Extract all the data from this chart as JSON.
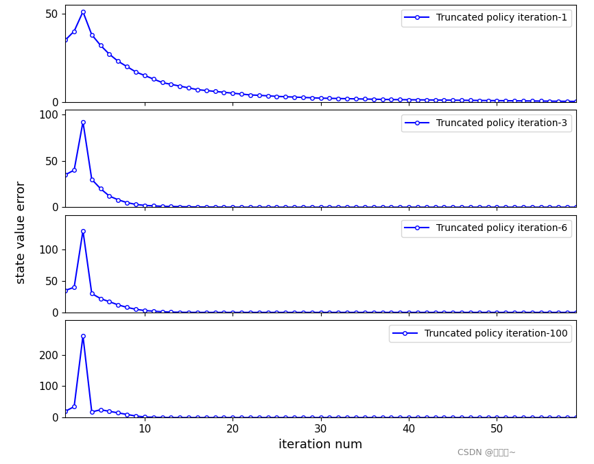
{
  "subplots": [
    {
      "label": "Truncated policy iteration-1",
      "ylim": [
        0,
        55
      ],
      "yticks": [
        0,
        50
      ],
      "n_points": 59,
      "curve_type": "slow_decay",
      "y_values": [
        35,
        40,
        51,
        38,
        32,
        27,
        23,
        20,
        17,
        15,
        13,
        11,
        10,
        9,
        8,
        7,
        6.5,
        6,
        5.5,
        5,
        4.5,
        4,
        3.8,
        3.5,
        3.2,
        3,
        2.8,
        2.6,
        2.4,
        2.2,
        2.1,
        2.0,
        1.9,
        1.8,
        1.7,
        1.6,
        1.5,
        1.4,
        1.35,
        1.3,
        1.25,
        1.2,
        1.15,
        1.1,
        1.05,
        1.0,
        0.95,
        0.9,
        0.85,
        0.8,
        0.75,
        0.7,
        0.65,
        0.6,
        0.55,
        0.5,
        0.45,
        0.4,
        0.35
      ]
    },
    {
      "label": "Truncated policy iteration-3",
      "ylim": [
        0,
        105
      ],
      "yticks": [
        0,
        50,
        100
      ],
      "n_points": 59,
      "curve_type": "fast_decay",
      "y_values": [
        35,
        40,
        92,
        30,
        20,
        12,
        8,
        5,
        3,
        2,
        1.5,
        1,
        0.8,
        0.6,
        0.4,
        0.3,
        0.2,
        0.15,
        0.1,
        0.05,
        0.02,
        0.01,
        0.0,
        0.0,
        0.0,
        0.0,
        0.0,
        0.0,
        0.0,
        0.0,
        0.0,
        0.0,
        0.0,
        0.0,
        0.0,
        0.0,
        0.0,
        0.0,
        0.0,
        0.0,
        0.0,
        0.0,
        0.0,
        0.0,
        0.0,
        0.0,
        0.0,
        0.0,
        0.0,
        0.0,
        0.0,
        0.0,
        0.0,
        0.0,
        0.0,
        0.0,
        0.0,
        0.0,
        0.0
      ]
    },
    {
      "label": "Truncated policy iteration-6",
      "ylim": [
        0,
        155
      ],
      "yticks": [
        0,
        50,
        100
      ],
      "n_points": 59,
      "curve_type": "fast_decay",
      "y_values": [
        35,
        40,
        130,
        30,
        22,
        17,
        12,
        8,
        5,
        3,
        2,
        1,
        0.5,
        0.2,
        0.05,
        0.01,
        0.0,
        0.0,
        0.0,
        0.0,
        0.0,
        0.0,
        0.0,
        0.0,
        0.0,
        0.0,
        0.0,
        0.0,
        0.0,
        0.0,
        0.0,
        0.0,
        0.0,
        0.0,
        0.0,
        0.0,
        0.0,
        0.0,
        0.0,
        0.0,
        0.0,
        0.0,
        0.0,
        0.0,
        0.0,
        0.0,
        0.0,
        0.0,
        0.0,
        0.0,
        0.0,
        0.0,
        0.0,
        0.0,
        0.0,
        0.0,
        0.0,
        0.0,
        0.0
      ]
    },
    {
      "label": "Truncated policy iteration-100",
      "ylim": [
        0,
        310
      ],
      "yticks": [
        0,
        100,
        200
      ],
      "n_points": 59,
      "curve_type": "fast_decay",
      "y_values": [
        20,
        35,
        260,
        18,
        25,
        20,
        15,
        10,
        5,
        2,
        1,
        0.5,
        0.1,
        0.02,
        0.0,
        0.0,
        0.0,
        0.0,
        0.0,
        0.0,
        0.0,
        0.0,
        0.0,
        0.0,
        0.0,
        0.0,
        0.0,
        0.0,
        0.0,
        0.0,
        0.0,
        0.0,
        0.0,
        0.0,
        0.0,
        0.0,
        0.0,
        0.0,
        0.0,
        0.0,
        0.0,
        0.0,
        0.0,
        0.0,
        0.0,
        0.0,
        0.0,
        0.0,
        0.0,
        0.0,
        0.0,
        0.0,
        0.0,
        0.0,
        0.0,
        0.0,
        0.0,
        0.0,
        0.0
      ]
    }
  ],
  "line_color": "#0000FF",
  "marker": "o",
  "markersize": 4,
  "linewidth": 1.5,
  "xlabel": "iteration num",
  "ylabel": "state value error",
  "xlim": [
    1,
    59
  ],
  "xticks": [
    10,
    20,
    30,
    40,
    50
  ],
  "background_color": "#FFFFFF",
  "watermark": "CSDN @大白菜~"
}
